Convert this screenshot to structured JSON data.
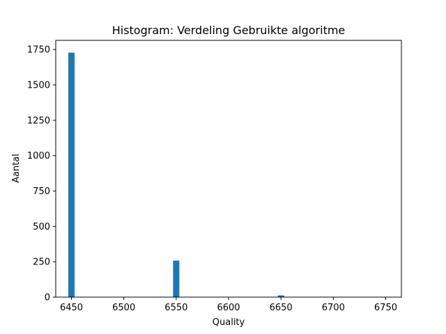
{
  "chart_data": {
    "type": "bar",
    "title": "Histogram: Verdeling Gebruikte algoritme",
    "xlabel": "Quality",
    "ylabel": "Aantal",
    "xlim": [
      6435,
      6765
    ],
    "ylim": [
      0,
      1815
    ],
    "bin_width": 6,
    "x_ticks": [
      6450,
      6500,
      6550,
      6600,
      6650,
      6700,
      6750
    ],
    "y_ticks": [
      0,
      250,
      500,
      750,
      1000,
      1250,
      1500,
      1750
    ],
    "bins": [
      {
        "x": 6450,
        "count": 1728
      },
      {
        "x": 6550,
        "count": 258
      },
      {
        "x": 6650,
        "count": 12
      },
      {
        "x": 6750,
        "count": 1
      }
    ],
    "bar_color": "#1f77b4",
    "grid": false,
    "legend": "none"
  }
}
